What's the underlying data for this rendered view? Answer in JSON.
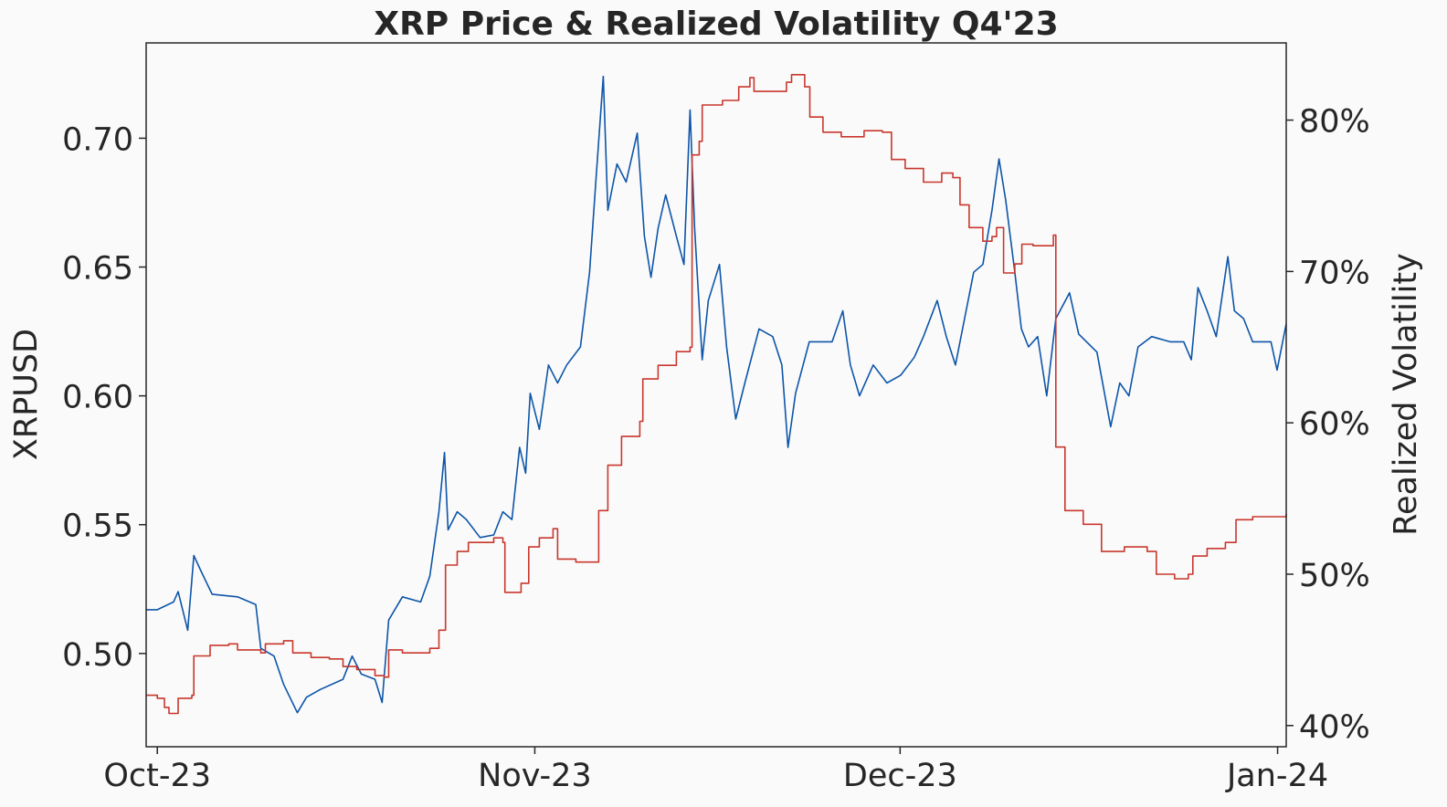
{
  "chart_data": {
    "type": "line",
    "title": "XRP Price & Realized Volatility Q4'23",
    "xlabel": "",
    "ylabel": "XRPUSD",
    "y2label": "Realized Volatility",
    "xlim": [
      "2023-09-30T02:00",
      "2024-01-01T17:00"
    ],
    "ylim": [
      0.4638,
      0.737
    ],
    "y2lim": [
      38.6,
      85.1
    ],
    "x_ticks": [
      {
        "date": "2023-10-01T00:00",
        "label": "Oct-23"
      },
      {
        "date": "2023-11-01T00:00",
        "label": "Nov-23"
      },
      {
        "date": "2023-12-01T00:00",
        "label": "Dec-23"
      },
      {
        "date": "2024-01-01T00:00",
        "label": "Jan-24"
      }
    ],
    "y_ticks": [
      {
        "value": 0.5,
        "label": "0.50"
      },
      {
        "value": 0.55,
        "label": "0.55"
      },
      {
        "value": 0.6,
        "label": "0.60"
      },
      {
        "value": 0.65,
        "label": "0.65"
      },
      {
        "value": 0.7,
        "label": "0.70"
      }
    ],
    "y2_ticks": [
      {
        "value": 40,
        "label": "40%"
      },
      {
        "value": 50,
        "label": "50%"
      },
      {
        "value": 60,
        "label": "60%"
      },
      {
        "value": 70,
        "label": "70%"
      },
      {
        "value": 80,
        "label": "80%"
      }
    ],
    "grid": false,
    "legend": "none",
    "series": [
      {
        "axis": "left",
        "color": "#0d55a8",
        "points": [
          [
            "2023-09-30T02:00",
            0.517
          ],
          [
            "2023-10-01T00:00",
            0.517
          ],
          [
            "2023-10-02T08:00",
            0.52
          ],
          [
            "2023-10-02T17:00",
            0.524
          ],
          [
            "2023-10-03T12:00",
            0.509
          ],
          [
            "2023-10-04T00:00",
            0.538
          ],
          [
            "2023-10-04T14:00",
            0.532
          ],
          [
            "2023-10-05T12:00",
            0.523
          ],
          [
            "2023-10-07T14:00",
            0.522
          ],
          [
            "2023-10-09T02:00",
            0.519
          ],
          [
            "2023-10-09T12:00",
            0.502
          ],
          [
            "2023-10-10T14:00",
            0.499
          ],
          [
            "2023-10-11T09:00",
            0.488
          ],
          [
            "2023-10-12T12:00",
            0.477
          ],
          [
            "2023-10-13T06:00",
            0.483
          ],
          [
            "2023-10-14T09:00",
            0.486
          ],
          [
            "2023-10-16T06:00",
            0.49
          ],
          [
            "2023-10-17T00:00",
            0.499
          ],
          [
            "2023-10-17T18:00",
            0.492
          ],
          [
            "2023-10-18T21:00",
            0.49
          ],
          [
            "2023-10-19T11:00",
            0.481
          ],
          [
            "2023-10-20T00:00",
            0.513
          ],
          [
            "2023-10-21T03:00",
            0.522
          ],
          [
            "2023-10-22T15:00",
            0.52
          ],
          [
            "2023-10-23T09:00",
            0.53
          ],
          [
            "2023-10-24T03:00",
            0.555
          ],
          [
            "2023-10-24T14:00",
            0.578
          ],
          [
            "2023-10-24T21:00",
            0.548
          ],
          [
            "2023-10-25T15:00",
            0.555
          ],
          [
            "2023-10-26T09:00",
            0.552
          ],
          [
            "2023-10-27T12:00",
            0.545
          ],
          [
            "2023-10-28T15:00",
            0.546
          ],
          [
            "2023-10-29T09:00",
            0.555
          ],
          [
            "2023-10-30T03:00",
            0.552
          ],
          [
            "2023-10-30T18:00",
            0.58
          ],
          [
            "2023-10-31T06:00",
            0.57
          ],
          [
            "2023-10-31T15:00",
            0.601
          ],
          [
            "2023-11-01T09:00",
            0.587
          ],
          [
            "2023-11-02T03:00",
            0.612
          ],
          [
            "2023-11-02T21:00",
            0.605
          ],
          [
            "2023-11-03T15:00",
            0.612
          ],
          [
            "2023-11-04T18:00",
            0.619
          ],
          [
            "2023-11-05T12:00",
            0.648
          ],
          [
            "2023-11-06T01:00",
            0.685
          ],
          [
            "2023-11-06T15:00",
            0.724
          ],
          [
            "2023-11-07T00:00",
            0.672
          ],
          [
            "2023-11-07T18:00",
            0.69
          ],
          [
            "2023-11-08T12:00",
            0.683
          ],
          [
            "2023-11-09T10:00",
            0.702
          ],
          [
            "2023-11-10T00:00",
            0.662
          ],
          [
            "2023-11-10T13:00",
            0.646
          ],
          [
            "2023-11-11T03:00",
            0.665
          ],
          [
            "2023-11-11T18:00",
            0.678
          ],
          [
            "2023-11-12T15:00",
            0.662
          ],
          [
            "2023-11-13T06:00",
            0.651
          ],
          [
            "2023-11-13T18:00",
            0.711
          ],
          [
            "2023-11-14T03:00",
            0.665
          ],
          [
            "2023-11-14T18:00",
            0.614
          ],
          [
            "2023-11-15T06:00",
            0.637
          ],
          [
            "2023-11-16T04:00",
            0.651
          ],
          [
            "2023-11-16T18:00",
            0.619
          ],
          [
            "2023-11-17T12:00",
            0.591
          ],
          [
            "2023-11-18T06:00",
            0.605
          ],
          [
            "2023-11-19T10:00",
            0.626
          ],
          [
            "2023-11-20T13:00",
            0.623
          ],
          [
            "2023-11-21T07:00",
            0.612
          ],
          [
            "2023-11-21T19:00",
            0.58
          ],
          [
            "2023-11-22T10:00",
            0.601
          ],
          [
            "2023-11-23T13:00",
            0.621
          ],
          [
            "2023-11-25T10:00",
            0.621
          ],
          [
            "2023-11-26T07:00",
            0.633
          ],
          [
            "2023-11-26T22:00",
            0.612
          ],
          [
            "2023-11-27T16:00",
            0.6
          ],
          [
            "2023-11-28T19:00",
            0.612
          ],
          [
            "2023-11-29T22:00",
            0.605
          ],
          [
            "2023-12-01T01:00",
            0.608
          ],
          [
            "2023-12-02T04:00",
            0.615
          ],
          [
            "2023-12-02T22:00",
            0.623
          ],
          [
            "2023-12-04T01:00",
            0.637
          ],
          [
            "2023-12-04T19:00",
            0.623
          ],
          [
            "2023-12-05T13:00",
            0.612
          ],
          [
            "2023-12-06T07:00",
            0.63
          ],
          [
            "2023-12-07T01:00",
            0.648
          ],
          [
            "2023-12-07T19:00",
            0.651
          ],
          [
            "2023-12-08T13:00",
            0.672
          ],
          [
            "2023-12-09T03:00",
            0.692
          ],
          [
            "2023-12-09T16:00",
            0.676
          ],
          [
            "2023-12-10T10:00",
            0.648
          ],
          [
            "2023-12-10T23:00",
            0.626
          ],
          [
            "2023-12-11T13:00",
            0.619
          ],
          [
            "2023-12-12T07:00",
            0.623
          ],
          [
            "2023-12-13T01:00",
            0.6
          ],
          [
            "2023-12-13T19:00",
            0.63
          ],
          [
            "2023-12-14T22:00",
            0.64
          ],
          [
            "2023-12-15T16:00",
            0.624
          ],
          [
            "2023-12-17T04:00",
            0.617
          ],
          [
            "2023-12-18T07:00",
            0.588
          ],
          [
            "2023-12-19T01:00",
            0.605
          ],
          [
            "2023-12-19T19:00",
            0.6
          ],
          [
            "2023-12-20T13:00",
            0.619
          ],
          [
            "2023-12-21T16:00",
            0.623
          ],
          [
            "2023-12-23T04:00",
            0.621
          ],
          [
            "2023-12-24T07:00",
            0.621
          ],
          [
            "2023-12-24T22:00",
            0.614
          ],
          [
            "2023-12-25T11:00",
            0.642
          ],
          [
            "2023-12-26T05:00",
            0.633
          ],
          [
            "2023-12-26T23:00",
            0.623
          ],
          [
            "2023-12-27T22:00",
            0.654
          ],
          [
            "2023-12-28T11:00",
            0.633
          ],
          [
            "2023-12-29T05:00",
            0.63
          ],
          [
            "2023-12-29T23:00",
            0.621
          ],
          [
            "2023-12-31T11:00",
            0.621
          ],
          [
            "2023-12-31T23:00",
            0.61
          ],
          [
            "2024-01-01T17:00",
            0.628
          ]
        ]
      },
      {
        "axis": "right",
        "color": "#c8372d",
        "step": true,
        "points": [
          [
            "2023-09-30T02:00",
            42.0
          ],
          [
            "2023-10-01T00:00",
            41.8
          ],
          [
            "2023-10-01T14:00",
            41.2
          ],
          [
            "2023-10-01T23:00",
            40.8
          ],
          [
            "2023-10-02T17:00",
            41.8
          ],
          [
            "2023-10-03T20:00",
            42.0
          ],
          [
            "2023-10-04T00:00",
            44.6
          ],
          [
            "2023-10-05T08:00",
            45.3
          ],
          [
            "2023-10-06T21:00",
            45.4
          ],
          [
            "2023-10-07T14:00",
            45.0
          ],
          [
            "2023-10-09T12:00",
            44.8
          ],
          [
            "2023-10-09T21:00",
            45.4
          ],
          [
            "2023-10-11T09:00",
            45.6
          ],
          [
            "2023-10-12T03:00",
            44.8
          ],
          [
            "2023-10-13T15:00",
            44.5
          ],
          [
            "2023-10-15T03:00",
            44.4
          ],
          [
            "2023-10-16T06:00",
            43.9
          ],
          [
            "2023-10-17T09:00",
            43.7
          ],
          [
            "2023-10-18T21:00",
            43.3
          ],
          [
            "2023-10-19T15:00",
            43.2
          ],
          [
            "2023-10-20T00:00",
            45.0
          ],
          [
            "2023-10-21T03:00",
            44.8
          ],
          [
            "2023-10-23T09:00",
            45.1
          ],
          [
            "2023-10-24T03:00",
            46.3
          ],
          [
            "2023-10-24T16:00",
            50.6
          ],
          [
            "2023-10-25T15:00",
            51.5
          ],
          [
            "2023-10-26T13:00",
            52.1
          ],
          [
            "2023-10-28T15:00",
            52.4
          ],
          [
            "2023-10-29T09:00",
            52.1
          ],
          [
            "2023-10-29T13:00",
            48.8
          ],
          [
            "2023-10-30T12:00",
            48.8
          ],
          [
            "2023-10-30T21:00",
            49.4
          ],
          [
            "2023-10-31T12:00",
            51.8
          ],
          [
            "2023-11-01T09:00",
            52.4
          ],
          [
            "2023-11-02T12:00",
            53.0
          ],
          [
            "2023-11-02T21:00",
            51.0
          ],
          [
            "2023-11-04T09:00",
            50.8
          ],
          [
            "2023-11-05T07:00",
            50.8
          ],
          [
            "2023-11-06T06:00",
            54.2
          ],
          [
            "2023-11-07T00:00",
            57.2
          ],
          [
            "2023-11-08T03:00",
            59.1
          ],
          [
            "2023-11-09T15:00",
            60.1
          ],
          [
            "2023-11-09T21:00",
            62.9
          ],
          [
            "2023-11-11T03:00",
            63.8
          ],
          [
            "2023-11-12T15:00",
            64.7
          ],
          [
            "2023-11-13T18:00",
            65.0
          ],
          [
            "2023-11-13T22:00",
            77.7
          ],
          [
            "2023-11-14T12:00",
            78.6
          ],
          [
            "2023-11-14T18:00",
            81.0
          ],
          [
            "2023-11-16T10:00",
            81.3
          ],
          [
            "2023-11-17T18:00",
            82.2
          ],
          [
            "2023-11-18T16:00",
            82.8
          ],
          [
            "2023-11-19T00:00",
            81.9
          ],
          [
            "2023-11-20T22:00",
            81.9
          ],
          [
            "2023-11-21T16:00",
            82.5
          ],
          [
            "2023-11-22T02:00",
            83.0
          ],
          [
            "2023-11-23T04:00",
            82.2
          ],
          [
            "2023-11-23T14:00",
            80.2
          ],
          [
            "2023-11-24T16:00",
            79.2
          ],
          [
            "2023-11-26T04:00",
            78.9
          ],
          [
            "2023-11-28T01:00",
            79.3
          ],
          [
            "2023-11-29T13:00",
            79.2
          ],
          [
            "2023-11-30T07:00",
            77.4
          ],
          [
            "2023-12-01T10:00",
            76.8
          ],
          [
            "2023-12-02T22:00",
            75.9
          ],
          [
            "2023-12-04T10:00",
            76.5
          ],
          [
            "2023-12-05T08:00",
            76.2
          ],
          [
            "2023-12-05T22:00",
            74.4
          ],
          [
            "2023-12-06T16:00",
            72.9
          ],
          [
            "2023-12-07T19:00",
            72.0
          ],
          [
            "2023-12-08T13:00",
            72.3
          ],
          [
            "2023-12-08T22:00",
            72.9
          ],
          [
            "2023-12-09T12:00",
            69.9
          ],
          [
            "2023-12-10T10:00",
            70.5
          ],
          [
            "2023-12-11T00:00",
            71.8
          ],
          [
            "2023-12-11T22:00",
            71.7
          ],
          [
            "2023-12-13T14:00",
            72.4
          ],
          [
            "2023-12-13T19:00",
            58.4
          ],
          [
            "2023-12-14T13:00",
            54.2
          ],
          [
            "2023-12-16T01:00",
            53.3
          ],
          [
            "2023-12-17T13:00",
            51.5
          ],
          [
            "2023-12-19T10:00",
            51.8
          ],
          [
            "2023-12-21T07:00",
            51.5
          ],
          [
            "2023-12-22T01:00",
            50.0
          ],
          [
            "2023-12-23T13:00",
            49.7
          ],
          [
            "2023-12-24T16:00",
            50.0
          ],
          [
            "2023-12-25T01:00",
            51.2
          ],
          [
            "2023-12-26T05:00",
            51.7
          ],
          [
            "2023-12-27T17:00",
            52.1
          ],
          [
            "2023-12-28T14:00",
            53.6
          ],
          [
            "2023-12-29T23:00",
            53.8
          ],
          [
            "2023-12-31T20:00",
            53.8
          ],
          [
            "2024-01-01T17:00",
            54.0
          ]
        ]
      }
    ]
  }
}
